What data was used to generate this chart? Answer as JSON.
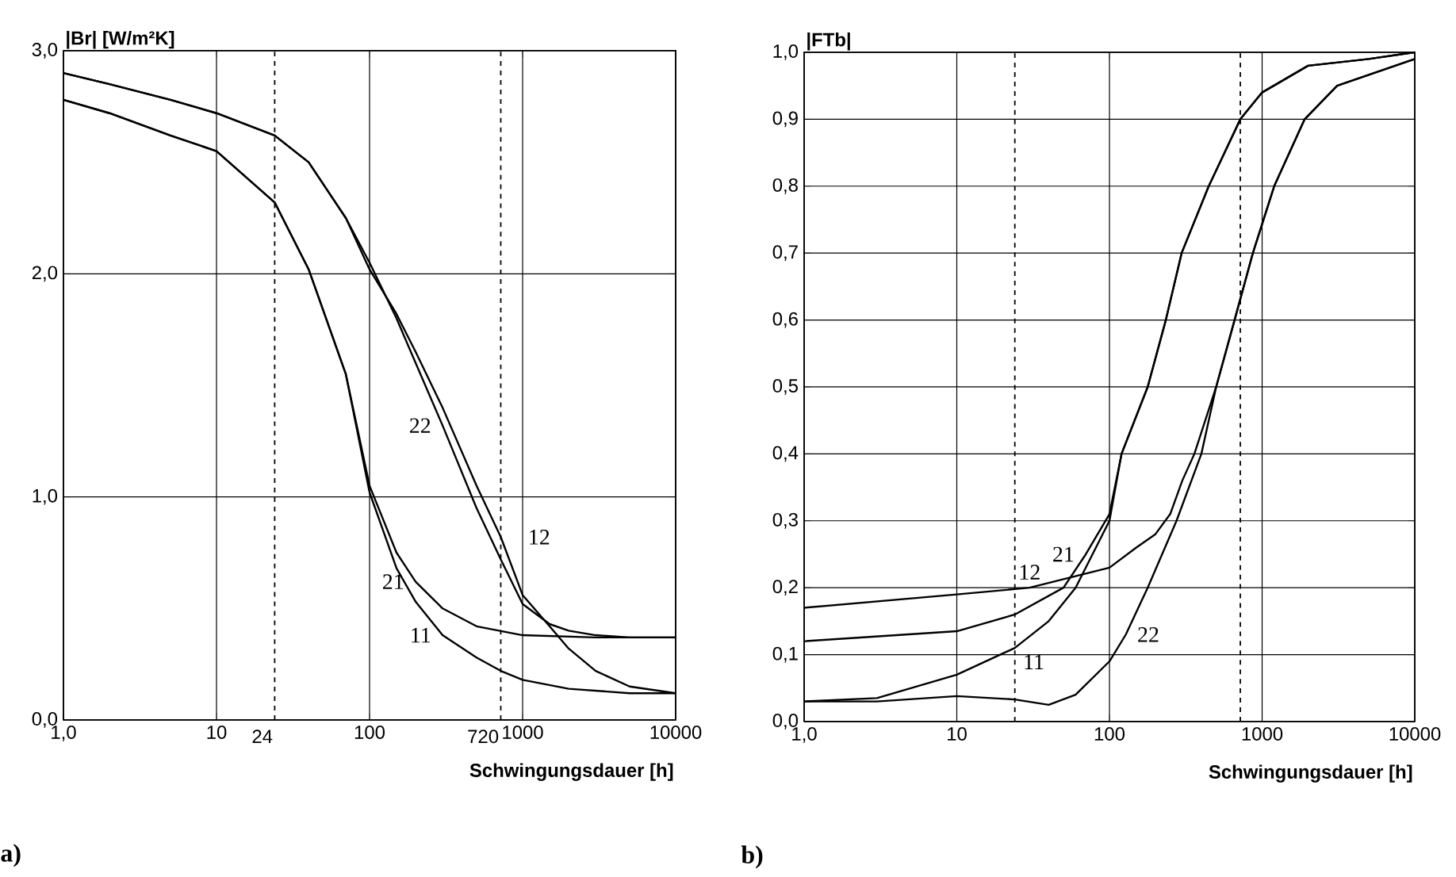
{
  "chart_data": [
    {
      "type": "line",
      "ylabel": "|Br| [W/m²K]",
      "xlabel": "Schwingungsdauer [h]",
      "annotations": [
        "a)"
      ],
      "log": "x",
      "grid": true,
      "line_style": "solid",
      "xlim": [
        1,
        10000
      ],
      "ylim": [
        0,
        3
      ],
      "xticks": [
        {
          "value": 1,
          "label": "1,0"
        },
        10,
        100,
        1000,
        10000
      ],
      "yticks": [
        {
          "value": 0,
          "label": "0,0"
        },
        {
          "value": 1,
          "label": "1,0"
        },
        {
          "value": 2,
          "label": "2,0"
        },
        {
          "value": 3,
          "label": "3,0"
        }
      ],
      "ref_lines": [
        {
          "axis": "x",
          "value": 24,
          "label": "24",
          "line_style": "dashed"
        },
        {
          "axis": "x",
          "value": 720,
          "label": "720",
          "line_style": "dashed"
        }
      ],
      "series": [
        {
          "name": "11",
          "color": "#000000",
          "x": [
            1,
            2,
            5,
            10,
            24,
            40,
            70,
            100,
            150,
            200,
            300,
            500,
            720,
            1000,
            2000,
            5000,
            10000
          ],
          "values": [
            2.78,
            2.72,
            2.62,
            2.55,
            2.32,
            2.02,
            1.55,
            1.02,
            0.68,
            0.53,
            0.38,
            0.28,
            0.22,
            0.18,
            0.14,
            0.12,
            0.12
          ]
        },
        {
          "name": "12",
          "color": "#000000",
          "x": [
            1,
            2,
            5,
            10,
            24,
            40,
            70,
            100,
            150,
            200,
            300,
            500,
            720,
            1000,
            1500,
            2000,
            3000,
            5000,
            10000
          ],
          "values": [
            2.9,
            2.85,
            2.78,
            2.72,
            2.62,
            2.5,
            2.25,
            2.02,
            1.82,
            1.65,
            1.4,
            1.05,
            0.82,
            0.56,
            0.42,
            0.32,
            0.22,
            0.15,
            0.12
          ]
        },
        {
          "name": "21",
          "color": "#000000",
          "x": [
            1,
            2,
            5,
            10,
            24,
            40,
            70,
            100,
            150,
            200,
            300,
            500,
            1000,
            3000,
            10000
          ],
          "values": [
            2.78,
            2.72,
            2.62,
            2.55,
            2.32,
            2.02,
            1.55,
            1.05,
            0.75,
            0.62,
            0.5,
            0.42,
            0.38,
            0.37,
            0.37
          ]
        },
        {
          "name": "22",
          "color": "#000000",
          "x": [
            1,
            2,
            5,
            10,
            24,
            40,
            70,
            100,
            150,
            200,
            300,
            500,
            720,
            1000,
            1500,
            2000,
            3000,
            5000,
            10000
          ],
          "values": [
            2.9,
            2.85,
            2.78,
            2.72,
            2.62,
            2.5,
            2.25,
            2.05,
            1.8,
            1.6,
            1.32,
            0.95,
            0.72,
            0.52,
            0.43,
            0.4,
            0.38,
            0.37,
            0.37
          ]
        }
      ]
    },
    {
      "type": "line",
      "ylabel": "|FTb|",
      "xlabel": "Schwingungsdauer [h]",
      "annotations": [
        "b)"
      ],
      "log": "x",
      "grid": true,
      "line_style": "solid",
      "xlim": [
        1,
        10000
      ],
      "ylim": [
        0,
        1
      ],
      "xticks": [
        {
          "value": 1,
          "label": "1,0"
        },
        10,
        100,
        1000,
        10000
      ],
      "yticks": [
        {
          "value": 0,
          "label": "0,0"
        },
        {
          "value": 0.1,
          "label": "0,1"
        },
        {
          "value": 0.2,
          "label": "0,2"
        },
        {
          "value": 0.3,
          "label": "0,3"
        },
        {
          "value": 0.4,
          "label": "0,4"
        },
        {
          "value": 0.5,
          "label": "0,5"
        },
        {
          "value": 0.6,
          "label": "0,6"
        },
        {
          "value": 0.7,
          "label": "0,7"
        },
        {
          "value": 0.8,
          "label": "0,8"
        },
        {
          "value": 0.9,
          "label": "0,9"
        },
        {
          "value": 1,
          "label": "1,0"
        }
      ],
      "ref_lines": [
        {
          "axis": "x",
          "value": 24,
          "line_style": "dashed"
        },
        {
          "axis": "x",
          "value": 720,
          "line_style": "dashed"
        }
      ],
      "series": [
        {
          "name": "11",
          "color": "#000000",
          "x": [
            1,
            3,
            10,
            24,
            40,
            60,
            100,
            120,
            178,
            234,
            297,
            447,
            720,
            1000,
            2000,
            5000,
            10000
          ],
          "values": [
            0.03,
            0.035,
            0.07,
            0.11,
            0.15,
            0.2,
            0.3,
            0.4,
            0.5,
            0.6,
            0.7,
            0.8,
            0.9,
            0.94,
            0.98,
            0.99,
            1.0
          ]
        },
        {
          "name": "12",
          "color": "#000000",
          "x": [
            1,
            10,
            30,
            100,
            150,
            200,
            250,
            300,
            360,
            500,
            660,
            870,
            1200,
            1900,
            3100,
            10000
          ],
          "values": [
            0.17,
            0.19,
            0.2,
            0.23,
            0.26,
            0.28,
            0.31,
            0.36,
            0.4,
            0.5,
            0.6,
            0.7,
            0.8,
            0.9,
            0.95,
            0.99
          ]
        },
        {
          "name": "21",
          "color": "#000000",
          "x": [
            1,
            10,
            24,
            50,
            70,
            100,
            120,
            178,
            234,
            297,
            447,
            720,
            1000,
            2000,
            5000,
            10000
          ],
          "values": [
            0.12,
            0.135,
            0.16,
            0.2,
            0.25,
            0.31,
            0.4,
            0.5,
            0.6,
            0.7,
            0.8,
            0.9,
            0.94,
            0.98,
            0.99,
            1.0
          ]
        },
        {
          "name": "22",
          "color": "#000000",
          "x": [
            1,
            3,
            10,
            24,
            40,
            60,
            100,
            128,
            178,
            275,
            400,
            500,
            660,
            870,
            1200,
            1900,
            3100,
            10000
          ],
          "values": [
            0.03,
            0.03,
            0.038,
            0.033,
            0.025,
            0.04,
            0.09,
            0.13,
            0.2,
            0.3,
            0.4,
            0.5,
            0.6,
            0.7,
            0.8,
            0.9,
            0.95,
            0.99
          ]
        }
      ]
    }
  ]
}
